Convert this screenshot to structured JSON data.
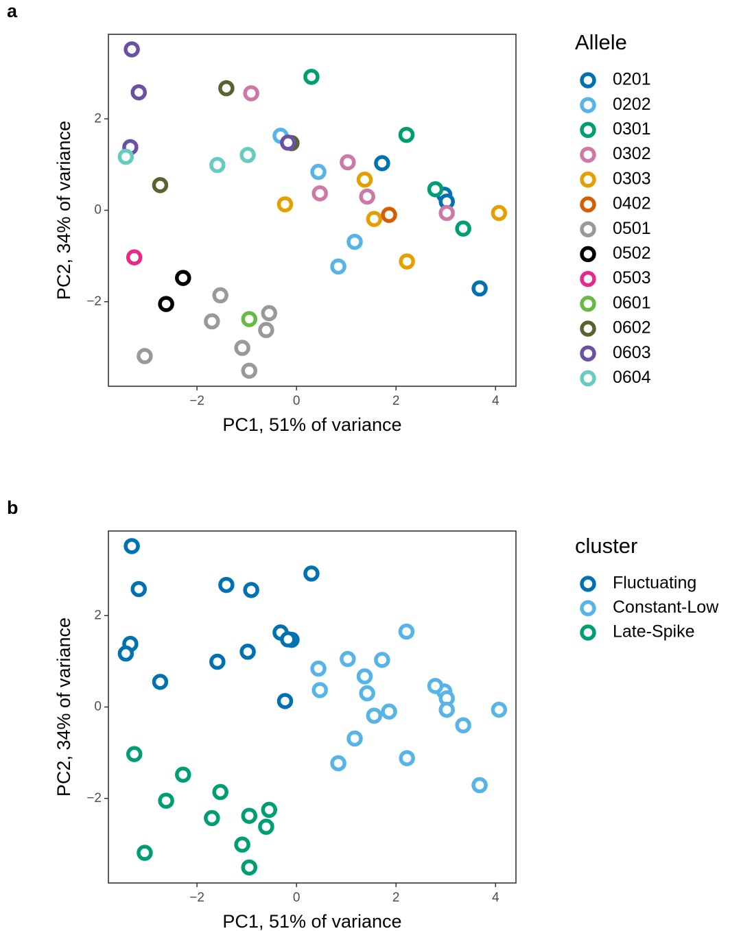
{
  "chart_data": [
    {
      "type": "scatter",
      "panel_label": "a",
      "x_label": "PC1, 51% of variance",
      "y_label": "PC2, 34% of variance",
      "legend_title": "Allele",
      "legend": "right",
      "grid": false,
      "xlim": [
        -3.78,
        4.41
      ],
      "ylim": [
        -3.85,
        3.85
      ],
      "xticks": [
        {
          "value": -2,
          "label": "−2"
        },
        0,
        2,
        4
      ],
      "yticks": [
        {
          "value": -2,
          "label": "−2"
        },
        0,
        2
      ],
      "series": [
        {
          "name": "0201",
          "color": "#0072B2",
          "x": [
            1.72,
            2.97,
            3.02,
            3.68
          ],
          "y": [
            1.03,
            0.34,
            0.19,
            -1.71
          ]
        },
        {
          "name": "0202",
          "color": "#56B4E9",
          "x": [
            -0.32,
            0.44,
            1.17,
            0.84
          ],
          "y": [
            1.63,
            0.84,
            -0.69,
            -1.23
          ]
        },
        {
          "name": "0301",
          "color": "#009E73",
          "x": [
            0.3,
            2.21,
            2.79,
            3.35
          ],
          "y": [
            2.92,
            1.65,
            0.46,
            -0.4
          ]
        },
        {
          "name": "0302",
          "color": "#CC79A7",
          "x": [
            -0.91,
            1.03,
            0.47,
            1.42,
            3.02
          ],
          "y": [
            2.56,
            1.05,
            0.37,
            0.3,
            -0.06
          ]
        },
        {
          "name": "0303",
          "color": "#E69F00",
          "x": [
            1.37,
            -0.23,
            1.56,
            4.07,
            2.22
          ],
          "y": [
            0.67,
            0.13,
            -0.19,
            -0.06,
            -1.12
          ]
        },
        {
          "name": "0402",
          "color": "#D55E00",
          "x": [
            1.86
          ],
          "y": [
            -0.1
          ]
        },
        {
          "name": "0501",
          "color": "#999999",
          "x": [
            -1.53,
            -1.7,
            -0.55,
            -0.61,
            -1.09,
            -0.95,
            -3.05
          ],
          "y": [
            -1.86,
            -2.43,
            -2.25,
            -2.62,
            -3.01,
            -3.51,
            -3.19
          ]
        },
        {
          "name": "0502",
          "color": "#000000",
          "x": [
            -2.28,
            -2.62
          ],
          "y": [
            -1.48,
            -2.05
          ]
        },
        {
          "name": "0503",
          "color": "#E7298A",
          "x": [
            -3.26
          ],
          "y": [
            -1.03
          ]
        },
        {
          "name": "0601",
          "color": "#66BB44",
          "x": [
            -0.95
          ],
          "y": [
            -2.38
          ]
        },
        {
          "name": "0602",
          "color": "#5C6130",
          "x": [
            -1.41,
            -2.74,
            -0.1
          ],
          "y": [
            2.67,
            0.55,
            1.47
          ]
        },
        {
          "name": "0603",
          "color": "#6A51A3",
          "x": [
            -3.31,
            -3.17,
            -3.34,
            -0.17
          ],
          "y": [
            3.52,
            2.58,
            1.38,
            1.48
          ]
        },
        {
          "name": "0604",
          "color": "#66CCC0",
          "x": [
            -3.43,
            -1.59,
            -0.98
          ],
          "y": [
            1.17,
            0.99,
            1.21
          ]
        }
      ]
    },
    {
      "type": "scatter",
      "panel_label": "b",
      "x_label": "PC1, 51% of variance",
      "y_label": "PC2, 34% of variance",
      "legend_title": "cluster",
      "legend": "right",
      "grid": false,
      "xlim": [
        -3.78,
        4.41
      ],
      "ylim": [
        -3.85,
        3.85
      ],
      "xticks": [
        {
          "value": -2,
          "label": "−2"
        },
        0,
        2,
        4
      ],
      "yticks": [
        {
          "value": -2,
          "label": "−2"
        },
        0,
        2
      ],
      "series": [
        {
          "name": "Fluctuating",
          "color": "#0072B2",
          "x": [
            -3.31,
            -3.17,
            -1.41,
            -0.91,
            0.3,
            -0.32,
            -0.1,
            -0.17,
            -3.34,
            -3.43,
            -1.59,
            -0.98,
            -2.74,
            -0.23
          ],
          "y": [
            3.52,
            2.58,
            2.67,
            2.56,
            2.92,
            1.63,
            1.47,
            1.48,
            1.38,
            1.17,
            0.99,
            1.21,
            0.55,
            0.13
          ]
        },
        {
          "name": "Constant-Low",
          "color": "#56B4E9",
          "x": [
            1.72,
            2.97,
            3.02,
            3.68,
            0.44,
            1.17,
            0.84,
            2.21,
            2.79,
            3.35,
            1.03,
            0.47,
            1.42,
            3.02,
            1.37,
            1.56,
            4.07,
            2.22,
            1.86
          ],
          "y": [
            1.03,
            0.34,
            0.19,
            -1.71,
            0.84,
            -0.69,
            -1.23,
            1.65,
            0.46,
            -0.4,
            1.05,
            0.37,
            0.3,
            -0.06,
            0.67,
            -0.19,
            -0.06,
            -1.12,
            -0.1
          ]
        },
        {
          "name": "Late-Spike",
          "color": "#009E73",
          "x": [
            -3.26,
            -2.28,
            -2.62,
            -1.53,
            -1.7,
            -0.55,
            -0.61,
            -1.09,
            -0.95,
            -3.05,
            -0.95
          ],
          "y": [
            -1.03,
            -1.48,
            -2.05,
            -1.86,
            -2.43,
            -2.25,
            -2.62,
            -3.01,
            -3.51,
            -3.19,
            -2.38
          ]
        }
      ]
    }
  ]
}
